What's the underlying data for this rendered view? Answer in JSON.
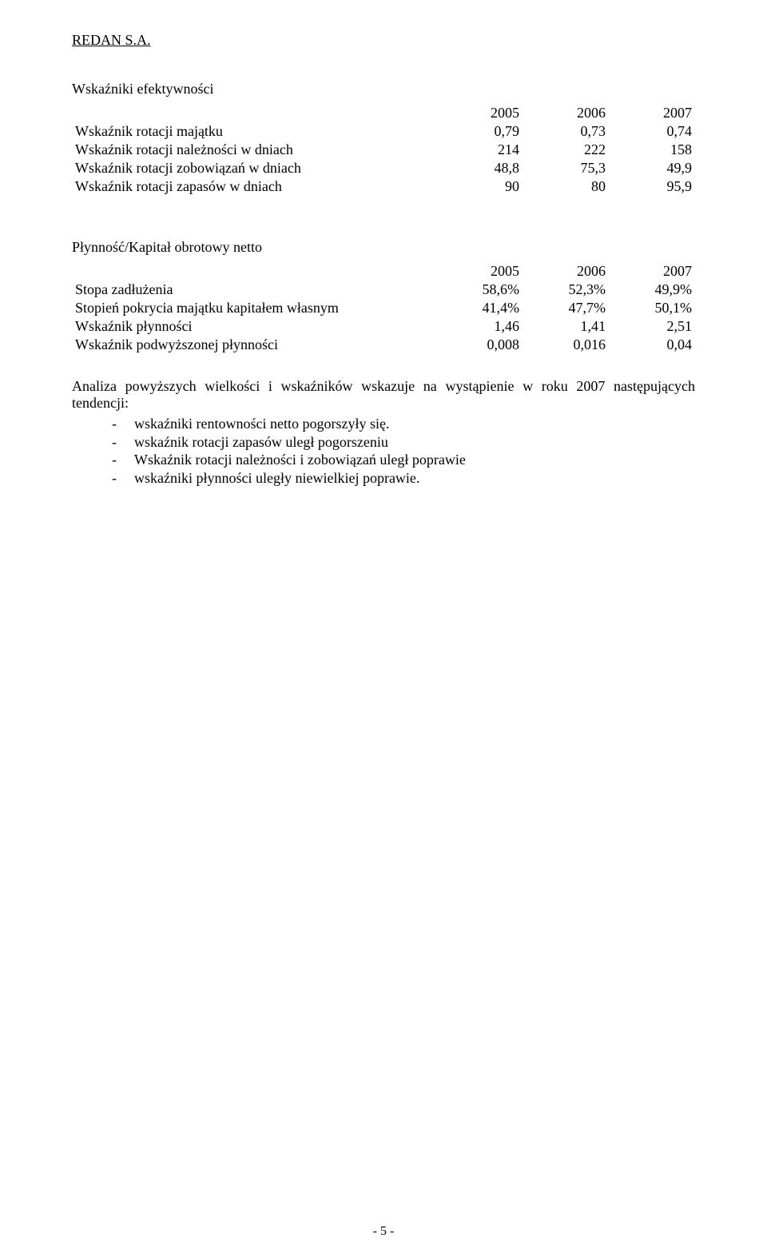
{
  "header": {
    "company": "REDAN S.A."
  },
  "section1": {
    "title": "Wskaźniki efektywności",
    "years": [
      "2005",
      "2006",
      "2007"
    ],
    "rows": [
      {
        "label": "Wskaźnik rotacji majątku",
        "v": [
          "0,79",
          "0,73",
          "0,74"
        ]
      },
      {
        "label": "Wskaźnik rotacji należności w dniach",
        "v": [
          "214",
          "222",
          "158"
        ]
      },
      {
        "label": "Wskaźnik rotacji zobowiązań w dniach",
        "v": [
          "48,8",
          "75,3",
          "49,9"
        ]
      },
      {
        "label": "Wskaźnik rotacji zapasów w dniach",
        "v": [
          "90",
          "80",
          "95,9"
        ]
      }
    ]
  },
  "section2": {
    "title": "Płynność/Kapitał obrotowy netto",
    "years": [
      "2005",
      "2006",
      "2007"
    ],
    "rows": [
      {
        "label": "Stopa zadłużenia",
        "v": [
          "58,6%",
          "52,3%",
          "49,9%"
        ]
      },
      {
        "label": "Stopień pokrycia majątku kapitałem własnym",
        "v": [
          "41,4%",
          "47,7%",
          "50,1%"
        ]
      },
      {
        "label": "Wskaźnik płynności",
        "v": [
          "1,46",
          "1,41",
          "2,51"
        ]
      },
      {
        "label": "Wskaźnik podwyższonej płynności",
        "v": [
          "0,008",
          "0,016",
          "0,04"
        ]
      }
    ]
  },
  "analysis": {
    "intro": "Analiza powyższych wielkości i wskaźników wskazuje na wystąpienie w roku 2007 następujących tendencji:",
    "bullets": [
      "wskaźniki rentowności netto pogorszyły  się.",
      "wskaźnik rotacji zapasów uległ pogorszeniu",
      "Wskaźnik rotacji należności i zobowiązań uległ poprawie",
      "wskaźniki płynności uległy niewielkiej poprawie."
    ]
  },
  "footer": {
    "page": "- 5 -"
  }
}
